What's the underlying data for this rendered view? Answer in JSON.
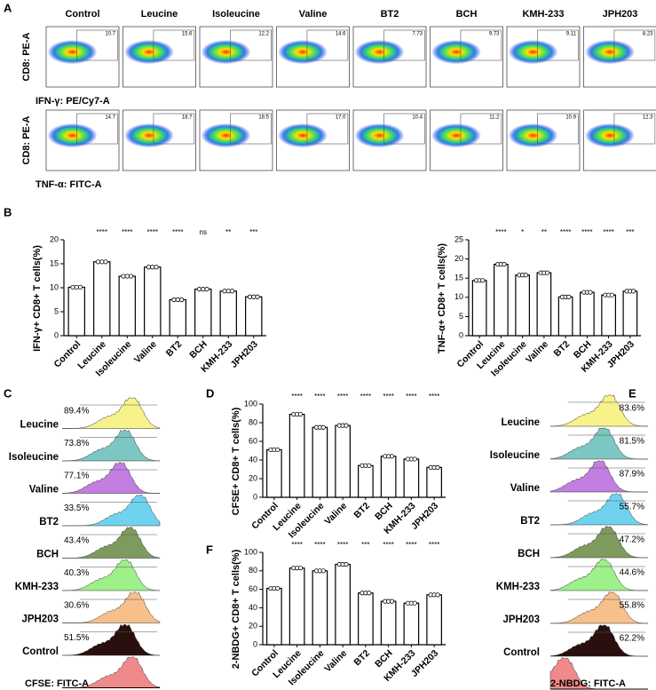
{
  "panel_labels": [
    "A",
    "B",
    "C",
    "D",
    "E",
    "F"
  ],
  "flow": {
    "columns": [
      "Control",
      "Leucine",
      "Isoleucine",
      "Valine",
      "BT2",
      "BCH",
      "KMH-233",
      "JPH203"
    ],
    "rows": [
      {
        "y_label": "CD8: PE-A",
        "x_label": "IFN-γ: PE/Cy7-A",
        "gate_values": [
          "10.7",
          "15.6",
          "12.2",
          "14.6",
          "7.73",
          "9.73",
          "9.11",
          "8.23"
        ]
      },
      {
        "y_label": "CD8: PE-A",
        "x_label": "TNF-α: FITC-A",
        "gate_values": [
          "14.7",
          "18.7",
          "18.5",
          "17.0",
          "10.4",
          "11.2",
          "10.9",
          "12.3"
        ]
      }
    ]
  },
  "chart_data": [
    {
      "type": "bar",
      "y_label": "IFN-γ+ CD8+ T cells(%)",
      "categories": [
        "Control",
        "Leucine",
        "Isoleucine",
        "Valine",
        "BT2",
        "BCH",
        "KMH-233",
        "JPH203"
      ],
      "values": [
        10.1,
        15.4,
        12.4,
        14.3,
        7.5,
        9.7,
        9.3,
        8.1
      ],
      "significance": [
        null,
        "****",
        "****",
        "****",
        "****",
        "ns",
        "**",
        "***"
      ],
      "ylim": [
        0,
        20
      ],
      "yticks": [
        0,
        5,
        10,
        15,
        20
      ],
      "color": "#ffffff"
    },
    {
      "type": "bar",
      "y_label": "TNF-α+ CD8+ T cells(%)",
      "categories": [
        "Control",
        "Leucine",
        "Isoleucine",
        "Valine",
        "BT2",
        "BCH",
        "KMH-233",
        "JPH203"
      ],
      "values": [
        14.4,
        18.6,
        15.8,
        16.4,
        10.1,
        11.3,
        10.6,
        11.6
      ],
      "significance": [
        null,
        "****",
        "*",
        "**",
        "****",
        "****",
        "****",
        "***"
      ],
      "ylim": [
        0,
        25
      ],
      "yticks": [
        0,
        5,
        10,
        15,
        20,
        25
      ],
      "color": "#ffffff"
    },
    {
      "type": "bar",
      "y_label": "CFSE+ CD8+ T cells(%)",
      "categories": [
        "Control",
        "Leucine",
        "Isoleucine",
        "Valine",
        "BT2",
        "BCH",
        "KMH-233",
        "JPH203"
      ],
      "values": [
        51,
        89,
        75,
        77,
        34,
        44,
        41,
        32
      ],
      "significance": [
        null,
        "****",
        "****",
        "****",
        "****",
        "****",
        "****",
        "****"
      ],
      "ylim": [
        0,
        100
      ],
      "yticks": [
        0,
        20,
        40,
        60,
        80,
        100
      ],
      "color": "#ffffff"
    },
    {
      "type": "bar",
      "y_label": "2-NBDG+ CD8+ T cells(%)",
      "categories": [
        "Control",
        "Leucine",
        "Isoleucine",
        "Valine",
        "BT2",
        "BCH",
        "KMH-233",
        "JPH203"
      ],
      "values": [
        61,
        83,
        80,
        87,
        56,
        47,
        45,
        54
      ],
      "significance": [
        null,
        "****",
        "****",
        "****",
        "***",
        "****",
        "****",
        "****"
      ],
      "ylim": [
        0,
        100
      ],
      "yticks": [
        0,
        20,
        40,
        60,
        80,
        100
      ],
      "color": "#ffffff"
    }
  ],
  "histograms": [
    {
      "x_label": "CFSE:  FITC-A",
      "samples": [
        {
          "name": "Leucine",
          "percent": "89.4%",
          "color": "#f7f38a"
        },
        {
          "name": "Isoleucine",
          "percent": "73.8%",
          "color": "#7cc7c2"
        },
        {
          "name": "Valine",
          "percent": "77.1%",
          "color": "#c27ee0"
        },
        {
          "name": "BT2",
          "percent": "33.5%",
          "color": "#6fd3f0"
        },
        {
          "name": "BCH",
          "percent": "43.4%",
          "color": "#7f9a5e"
        },
        {
          "name": "KMH-233",
          "percent": "40.3%",
          "color": "#9ef08a"
        },
        {
          "name": "JPH203",
          "percent": "30.6%",
          "color": "#f7c08a"
        },
        {
          "name": "Control",
          "percent": "51.5%",
          "color": "#2a0f0f"
        }
      ]
    },
    {
      "x_label": "2-NBDG:  FITC-A",
      "samples": [
        {
          "name": "Leucine",
          "percent": "83.6%",
          "color": "#f7f38a"
        },
        {
          "name": "Isoleucine",
          "percent": "81.5%",
          "color": "#7cc7c2"
        },
        {
          "name": "Valine",
          "percent": "87.9%",
          "color": "#c27ee0"
        },
        {
          "name": "BT2",
          "percent": "55.7%",
          "color": "#6fd3f0"
        },
        {
          "name": "BCH",
          "percent": "47.2%",
          "color": "#7f9a5e"
        },
        {
          "name": "KMH-233",
          "percent": "44.6%",
          "color": "#9ef08a"
        },
        {
          "name": "JPH203",
          "percent": "55.8%",
          "color": "#f7c08a"
        },
        {
          "name": "Control",
          "percent": "62.2%",
          "color": "#2a0f0f"
        }
      ]
    }
  ]
}
